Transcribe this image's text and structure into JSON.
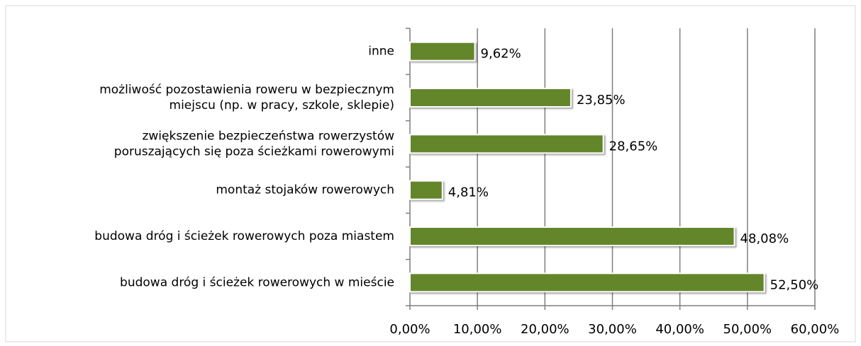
{
  "chart_data": {
    "type": "bar",
    "orientation": "horizontal",
    "categories": [
      [
        "inne"
      ],
      [
        "możliwość pozostawienia roweru w bezpiecznym",
        "miejscu (np. w pracy, szkole, sklepie)"
      ],
      [
        "zwiększenie bezpieczeństwa rowerzystów",
        "poruszających się poza ścieżkami rowerowymi"
      ],
      [
        "montaż stojaków rowerowych"
      ],
      [
        "budowa dróg i ścieżek rowerowych poza miastem"
      ],
      [
        "budowa dróg i ścieżek rowerowych w mieście"
      ]
    ],
    "values": [
      9.62,
      23.85,
      28.65,
      4.81,
      48.08,
      52.5
    ],
    "value_labels": [
      "9,62%",
      "23,85%",
      "28,65%",
      "4,81%",
      "48,08%",
      "52,50%"
    ],
    "color": "#63862b",
    "xlim": [
      0,
      60
    ],
    "xticks": [
      {
        "value": 0,
        "label": "0,00%"
      },
      {
        "value": 10,
        "label": "10,00%"
      },
      {
        "value": 20,
        "label": "20,00%"
      },
      {
        "value": 30,
        "label": "30,00%"
      },
      {
        "value": 40,
        "label": "40,00%"
      },
      {
        "value": 50,
        "label": "50,00%"
      },
      {
        "value": 60,
        "label": "60,00%"
      }
    ],
    "grid": true
  }
}
